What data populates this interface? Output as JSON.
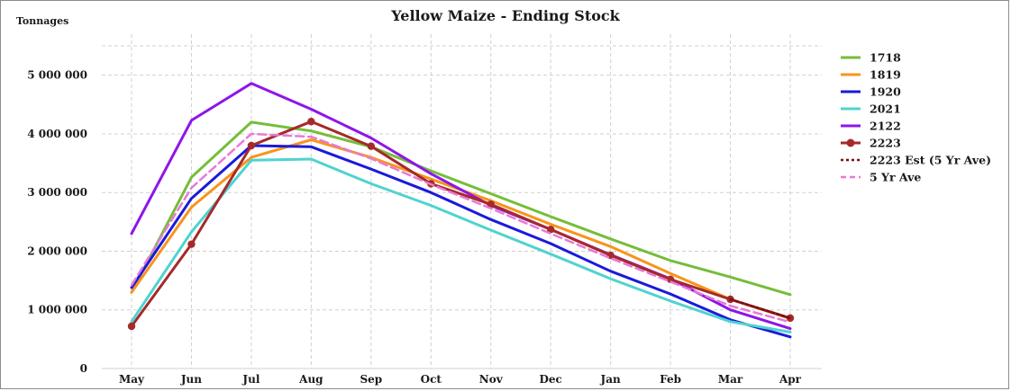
{
  "chart_data": {
    "type": "line",
    "title": "Yellow Maize - Ending Stock",
    "ylabel": "Tonnages",
    "xlabel": "",
    "categories": [
      "May",
      "Jun",
      "Jul",
      "Aug",
      "Sep",
      "Oct",
      "Nov",
      "Dec",
      "Jan",
      "Feb",
      "Mar",
      "Apr"
    ],
    "ylim": [
      0,
      5700000
    ],
    "yticks": [
      {
        "value": 0,
        "label": "0"
      },
      {
        "value": 1000000,
        "label": "1 000 000"
      },
      {
        "value": 2000000,
        "label": "2 000 000"
      },
      {
        "value": 3000000,
        "label": "3 000 000"
      },
      {
        "value": 4000000,
        "label": "4 000 000"
      },
      {
        "value": 5000000,
        "label": "5 000 000"
      }
    ],
    "grid": true,
    "legend_position": "right",
    "series": [
      {
        "name": "1718",
        "color": "#76bd3a",
        "style": "solid",
        "markers": false,
        "values": [
          1300000,
          3260000,
          4200000,
          4050000,
          3780000,
          3370000,
          2980000,
          2590000,
          2210000,
          1840000,
          1560000,
          1260000
        ]
      },
      {
        "name": "1819",
        "color": "#f7941d",
        "style": "solid",
        "markers": false,
        "values": [
          1300000,
          2750000,
          3600000,
          3900000,
          3600000,
          3230000,
          2860000,
          2460000,
          2080000,
          1620000,
          1180000,
          850000
        ]
      },
      {
        "name": "1920",
        "color": "#1a1adb",
        "style": "solid",
        "markers": false,
        "values": [
          1380000,
          2900000,
          3800000,
          3780000,
          3400000,
          3000000,
          2540000,
          2130000,
          1660000,
          1270000,
          830000,
          540000
        ]
      },
      {
        "name": "2021",
        "color": "#4fd3d0",
        "style": "solid",
        "markers": false,
        "values": [
          800000,
          2330000,
          3550000,
          3570000,
          3150000,
          2780000,
          2360000,
          1950000,
          1530000,
          1150000,
          800000,
          620000
        ]
      },
      {
        "name": "2122",
        "color": "#8f15e8",
        "style": "solid",
        "markers": false,
        "values": [
          2300000,
          4230000,
          4860000,
          4420000,
          3930000,
          3320000,
          2780000,
          2370000,
          1940000,
          1530000,
          1000000,
          680000
        ]
      },
      {
        "name": "2223",
        "color": "#a52a2a",
        "style": "solid",
        "markers": true,
        "values": [
          720000,
          2120000,
          3800000,
          4210000,
          3790000,
          3150000,
          2800000,
          2370000,
          1930000,
          1520000,
          1180000,
          860000
        ]
      },
      {
        "name": "2223 Est (5 Yr Ave)",
        "color": "#7b0f12",
        "style": "dotted",
        "markers": false,
        "values": [
          null,
          null,
          null,
          null,
          null,
          null,
          null,
          null,
          null,
          null,
          1180000,
          860000
        ]
      },
      {
        "name": "5 Yr Ave",
        "color": "#e879d6",
        "style": "dashed",
        "markers": false,
        "values": [
          1420000,
          3080000,
          4000000,
          3950000,
          3580000,
          3140000,
          2730000,
          2300000,
          1880000,
          1480000,
          1070000,
          790000
        ]
      }
    ]
  }
}
